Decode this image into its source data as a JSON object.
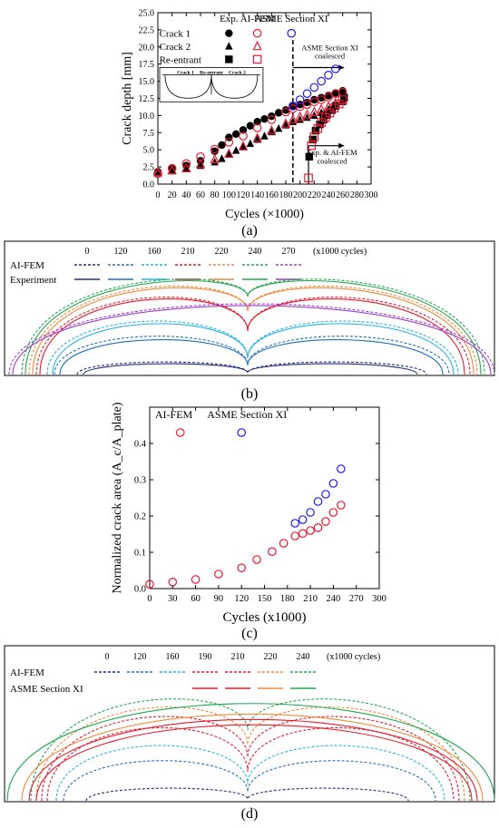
{
  "captions": {
    "a": "(a)",
    "b": "(b)",
    "c": "(c)",
    "d": "(d)"
  },
  "colors": {
    "red": "#e8192c",
    "blue": "#1b1bf2",
    "black": "#000000",
    "orange": "#f08a3c",
    "green": "#1fa84d",
    "purple": "#9b3fc7",
    "navy": "#1f2f7a",
    "mid_blue": "#1f6fc1",
    "cyan": "#23b3e3"
  },
  "chart_data": [
    {
      "id": "a",
      "type": "scatter",
      "xlabel": "Cycles (×1000)",
      "ylabel": "Crack depth [mm]",
      "xlim": [
        0,
        300
      ],
      "ylim": [
        0,
        25
      ],
      "xticks": [
        "0",
        "20",
        "40",
        "60",
        "80",
        "100",
        "120",
        "140",
        "160",
        "180",
        "200",
        "220",
        "240",
        "260",
        "280",
        "300"
      ],
      "yticks": [
        "0.0",
        "2.5",
        "5.0",
        "7.5",
        "10.0",
        "12.5",
        "15.0",
        "17.5",
        "20.0",
        "22.5",
        "25.0"
      ],
      "legend": {
        "col_headers": [
          "Exp.",
          "AI-FEM",
          "ASME Section XI"
        ],
        "rows": [
          "Crack 1",
          "Crack 2",
          "Re-entrant"
        ]
      },
      "inset_labels": [
        "Crack 1",
        "Re-entrant",
        "Crack 2"
      ],
      "annotations": {
        "vline_x": 190,
        "asme_label": "ASME Section XI\ncoalesced",
        "exp_label": "Exp. & AI-FEM\ncoalesced"
      },
      "series": [
        {
          "name": "Crack 1",
          "source": "Exp.",
          "marker": "circle-filled",
          "color": "black",
          "x": [
            0,
            20,
            40,
            60,
            80,
            90,
            100,
            110,
            120,
            130,
            140,
            150,
            160,
            170,
            180,
            190,
            200,
            210,
            220,
            230,
            240,
            250,
            260
          ],
          "y": [
            1.8,
            2.2,
            2.7,
            3.4,
            4.8,
            5.7,
            6.8,
            7.3,
            7.9,
            8.5,
            9.1,
            9.5,
            9.9,
            10.4,
            10.8,
            11.3,
            11.6,
            11.9,
            12.3,
            12.6,
            12.9,
            13.3,
            13.6
          ]
        },
        {
          "name": "Crack 1",
          "source": "AI-FEM",
          "marker": "circle-open",
          "color": "red",
          "x": [
            0,
            20,
            40,
            60,
            80,
            100,
            120,
            140,
            160,
            180,
            190,
            200,
            210,
            220,
            230,
            240,
            250,
            260
          ],
          "y": [
            1.5,
            2.3,
            3.0,
            4.0,
            5.1,
            6.1,
            7.0,
            8.2,
            9.4,
            10.5,
            11.0,
            11.3,
            11.6,
            12.0,
            12.3,
            12.7,
            13.2,
            13.4
          ]
        },
        {
          "name": "Crack 1",
          "source": "ASME Section XI",
          "marker": "circle-open",
          "color": "blue",
          "x": [
            190,
            200,
            210,
            220,
            230,
            240,
            250
          ],
          "y": [
            11.4,
            12.3,
            13.2,
            14.1,
            15.0,
            15.9,
            16.8
          ]
        },
        {
          "name": "Crack 2",
          "source": "Exp.",
          "marker": "triangle-filled",
          "color": "black",
          "x": [
            0,
            20,
            40,
            60,
            80,
            90,
            100,
            110,
            120,
            130,
            140,
            150,
            160,
            170,
            180,
            190,
            200,
            210,
            220,
            230,
            240,
            250,
            260
          ],
          "y": [
            1.6,
            1.9,
            2.2,
            2.7,
            3.2,
            3.7,
            4.4,
            4.9,
            5.4,
            5.9,
            6.5,
            7.0,
            7.6,
            8.1,
            8.6,
            9.1,
            9.4,
            9.7,
            10.0,
            10.4,
            10.9,
            11.5,
            12.0
          ]
        },
        {
          "name": "Crack 2",
          "source": "AI-FEM",
          "marker": "triangle-open",
          "color": "red",
          "x": [
            0,
            20,
            40,
            60,
            80,
            100,
            120,
            140,
            160,
            180,
            190,
            200,
            210,
            220,
            230,
            240,
            250,
            260
          ],
          "y": [
            1.7,
            2.0,
            2.3,
            2.9,
            3.6,
            4.4,
            5.5,
            6.7,
            7.8,
            8.8,
            9.4,
            9.8,
            10.1,
            10.5,
            10.9,
            11.3,
            11.8,
            12.2
          ]
        },
        {
          "name": "Re-entrant",
          "source": "Exp.",
          "marker": "square-filled",
          "color": "black",
          "x": [
            213,
            218,
            222,
            228,
            233,
            238,
            245,
            250,
            262
          ],
          "y": [
            4.0,
            6.5,
            7.8,
            8.7,
            9.4,
            10.1,
            10.8,
            11.4,
            12.6
          ]
        },
        {
          "name": "Re-entrant",
          "source": "AI-FEM",
          "marker": "square-open",
          "color": "red",
          "x": [
            212,
            216,
            220,
            225,
            230,
            236,
            242,
            248,
            255,
            260
          ],
          "y": [
            0.9,
            5.6,
            6.9,
            8.1,
            9.0,
            9.7,
            10.4,
            11.1,
            11.7,
            12.3
          ]
        }
      ]
    },
    {
      "id": "b",
      "type": "line",
      "legend": {
        "row_labels": [
          "AI-FEM",
          "Experiment"
        ],
        "cycles": [
          "0",
          "120",
          "160",
          "210",
          "220",
          "240",
          "270"
        ],
        "unit": "(x1000 cycles)"
      },
      "series_colors": [
        "navy",
        "mid_blue",
        "cyan",
        "red",
        "orange",
        "green",
        "purple"
      ]
    },
    {
      "id": "c",
      "type": "scatter",
      "xlabel": "Cycles (x1000)",
      "ylabel": "Normalized crack area (A_c/A_plate)",
      "xlim": [
        0,
        300
      ],
      "ylim": [
        0,
        0.5
      ],
      "xticks": [
        "0",
        "30",
        "60",
        "90",
        "120",
        "150",
        "180",
        "210",
        "240",
        "270",
        "300"
      ],
      "yticks": [
        "0.0",
        "0.1",
        "0.2",
        "0.3",
        "0.4"
      ],
      "series": [
        {
          "name": "AI-FEM",
          "color": "red",
          "marker": "circle-open",
          "x": [
            0,
            30,
            60,
            90,
            120,
            140,
            160,
            175,
            190,
            200,
            210,
            220,
            230,
            240,
            250
          ],
          "y": [
            0.012,
            0.018,
            0.025,
            0.04,
            0.057,
            0.08,
            0.102,
            0.125,
            0.145,
            0.152,
            0.16,
            0.168,
            0.185,
            0.21,
            0.23
          ]
        },
        {
          "name": "ASME Section XI",
          "color": "blue",
          "marker": "circle-open",
          "x": [
            190,
            200,
            210,
            220,
            230,
            240,
            250
          ],
          "y": [
            0.18,
            0.19,
            0.21,
            0.24,
            0.26,
            0.29,
            0.33
          ]
        }
      ]
    },
    {
      "id": "d",
      "type": "line",
      "legend": {
        "row_labels": [
          "AI-FEM",
          "ASME Section XI"
        ],
        "cycles": [
          "0",
          "120",
          "160",
          "190",
          "210",
          "220",
          "240"
        ],
        "unit": "(x1000 cycles)"
      },
      "series_colors": [
        "navy",
        "mid_blue",
        "cyan",
        "red",
        "red",
        "orange",
        "green"
      ]
    }
  ]
}
